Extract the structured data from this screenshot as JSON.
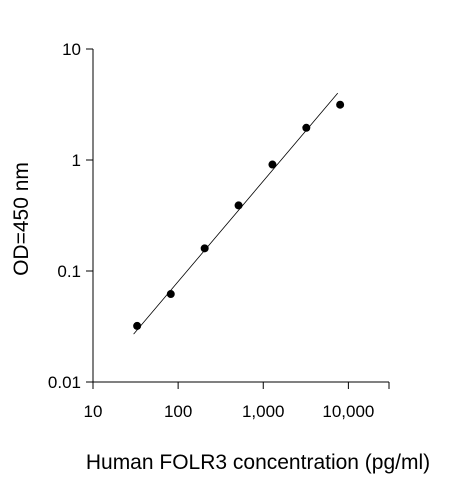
{
  "chart_data": {
    "type": "scatter",
    "title": "",
    "xlabel": "Human FOLR3 concentration (pg/ml)",
    "ylabel": "OD=450 nm",
    "xscale": "log",
    "yscale": "log",
    "xlim": [
      10,
      30000
    ],
    "ylim": [
      0.01,
      10
    ],
    "xticks": [
      10,
      100,
      1000,
      10000
    ],
    "xtick_labels": [
      "10",
      "100",
      "1,000",
      "10,000"
    ],
    "yticks": [
      0.01,
      0.1,
      1,
      10
    ],
    "ytick_labels": [
      "0.01",
      "0.1",
      "1",
      "10"
    ],
    "grid": false,
    "legend": "none",
    "marker_color": "#000000",
    "series": [
      {
        "x": [
          33,
          82,
          205,
          513,
          1282,
          3205,
          8000
        ],
        "y": [
          0.032,
          0.062,
          0.16,
          0.39,
          0.91,
          1.95,
          3.15
        ]
      }
    ],
    "fit_line": {
      "type": "linear-in-log-log",
      "x": [
        30,
        7500
      ],
      "y": [
        0.027,
        4.0
      ]
    }
  }
}
